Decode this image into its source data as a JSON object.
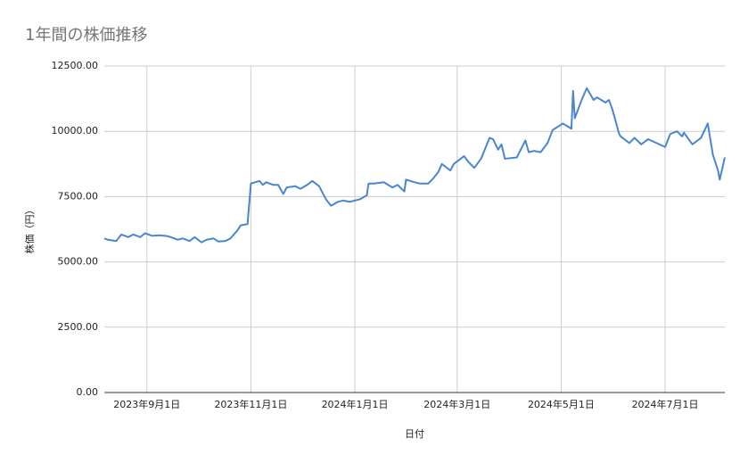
{
  "chart_data": {
    "type": "line",
    "title": "1年間の株価推移",
    "x_label": "日付",
    "y_label": "株価（円）",
    "color": "#4a86d0",
    "grid": true,
    "x": [
      "2023-08-07",
      "2023-08-09",
      "2023-08-14",
      "2023-08-17",
      "2023-08-21",
      "2023-08-24",
      "2023-08-28",
      "2023-08-31",
      "2023-09-04",
      "2023-09-08",
      "2023-09-12",
      "2023-09-15",
      "2023-09-19",
      "2023-09-22",
      "2023-09-26",
      "2023-09-29",
      "2023-10-03",
      "2023-10-06",
      "2023-10-10",
      "2023-10-13",
      "2023-10-17",
      "2023-10-20",
      "2023-10-24",
      "2023-10-26",
      "2023-10-30",
      "2023-11-01",
      "2023-11-06",
      "2023-11-08",
      "2023-11-10",
      "2023-11-14",
      "2023-11-17",
      "2023-11-20",
      "2023-11-22",
      "2023-11-27",
      "2023-11-30",
      "2023-12-04",
      "2023-12-07",
      "2023-12-11",
      "2023-12-15",
      "2023-12-18",
      "2023-12-22",
      "2023-12-25",
      "2023-12-29",
      "2024-01-04",
      "2024-01-08",
      "2024-01-09",
      "2024-01-12",
      "2024-01-18",
      "2024-01-23",
      "2024-01-26",
      "2024-01-30",
      "2024-01-31",
      "2024-02-05",
      "2024-02-08",
      "2024-02-13",
      "2024-02-16",
      "2024-02-19",
      "2024-02-21",
      "2024-02-26",
      "2024-02-28",
      "2024-03-05",
      "2024-03-08",
      "2024-03-11",
      "2024-03-15",
      "2024-03-20",
      "2024-03-22",
      "2024-03-25",
      "2024-03-27",
      "2024-03-29",
      "2024-04-05",
      "2024-04-10",
      "2024-04-12",
      "2024-04-15",
      "2024-04-19",
      "2024-04-23",
      "2024-04-26",
      "2024-05-02",
      "2024-05-07",
      "2024-05-08",
      "2024-05-09",
      "2024-05-13",
      "2024-05-16",
      "2024-05-20",
      "2024-05-22",
      "2024-05-27",
      "2024-05-29",
      "2024-05-31",
      "2024-06-04",
      "2024-06-05",
      "2024-06-10",
      "2024-06-13",
      "2024-06-17",
      "2024-06-21",
      "2024-06-26",
      "2024-07-01",
      "2024-07-04",
      "2024-07-08",
      "2024-07-11",
      "2024-07-12",
      "2024-07-17",
      "2024-07-22",
      "2024-07-26",
      "2024-07-29",
      "2024-08-01",
      "2024-08-02",
      "2024-08-05"
    ],
    "values": [
      5900,
      5850,
      5800,
      6050,
      5950,
      6050,
      5950,
      6100,
      6000,
      6020,
      6000,
      5950,
      5850,
      5900,
      5800,
      5950,
      5750,
      5850,
      5900,
      5780,
      5800,
      5900,
      6200,
      6400,
      6450,
      8000,
      8100,
      7950,
      8050,
      7950,
      7950,
      7600,
      7850,
      7900,
      7800,
      7950,
      8100,
      7900,
      7400,
      7150,
      7300,
      7350,
      7300,
      7400,
      7550,
      8000,
      8000,
      8050,
      7850,
      7950,
      7700,
      8150,
      8050,
      8000,
      8000,
      8200,
      8450,
      8750,
      8500,
      8750,
      9050,
      8800,
      8600,
      8950,
      9750,
      9700,
      9300,
      9500,
      8950,
      9000,
      9650,
      9200,
      9250,
      9200,
      9550,
      10050,
      10300,
      10100,
      11550,
      10500,
      11200,
      11650,
      11200,
      11300,
      11100,
      11200,
      10850,
      9900,
      9800,
      9550,
      9750,
      9500,
      9700,
      9550,
      9400,
      9900,
      10000,
      9800,
      9950,
      9500,
      9750,
      10300,
      9100,
      8500,
      8150,
      9000
    ],
    "xlim": [
      "2023-08-07",
      "2024-08-05"
    ],
    "xticks": [
      {
        "value": "2023-09-01",
        "label": "2023年9月1日"
      },
      {
        "value": "2023-11-01",
        "label": "2023年11月1日"
      },
      {
        "value": "2024-01-01",
        "label": "2024年1月1日"
      },
      {
        "value": "2024-03-01",
        "label": "2024年3月1日"
      },
      {
        "value": "2024-05-01",
        "label": "2024年5月1日"
      },
      {
        "value": "2024-07-01",
        "label": "2024年7月1日"
      }
    ],
    "ylim": [
      0,
      12500
    ],
    "yticks": [
      {
        "value": 0,
        "label": "0.00"
      },
      {
        "value": 2500,
        "label": "2500.00"
      },
      {
        "value": 5000,
        "label": "5000.00"
      },
      {
        "value": 7500,
        "label": "7500.00"
      },
      {
        "value": 10000,
        "label": "10000.00"
      },
      {
        "value": 12500,
        "label": "12500.00"
      }
    ]
  }
}
